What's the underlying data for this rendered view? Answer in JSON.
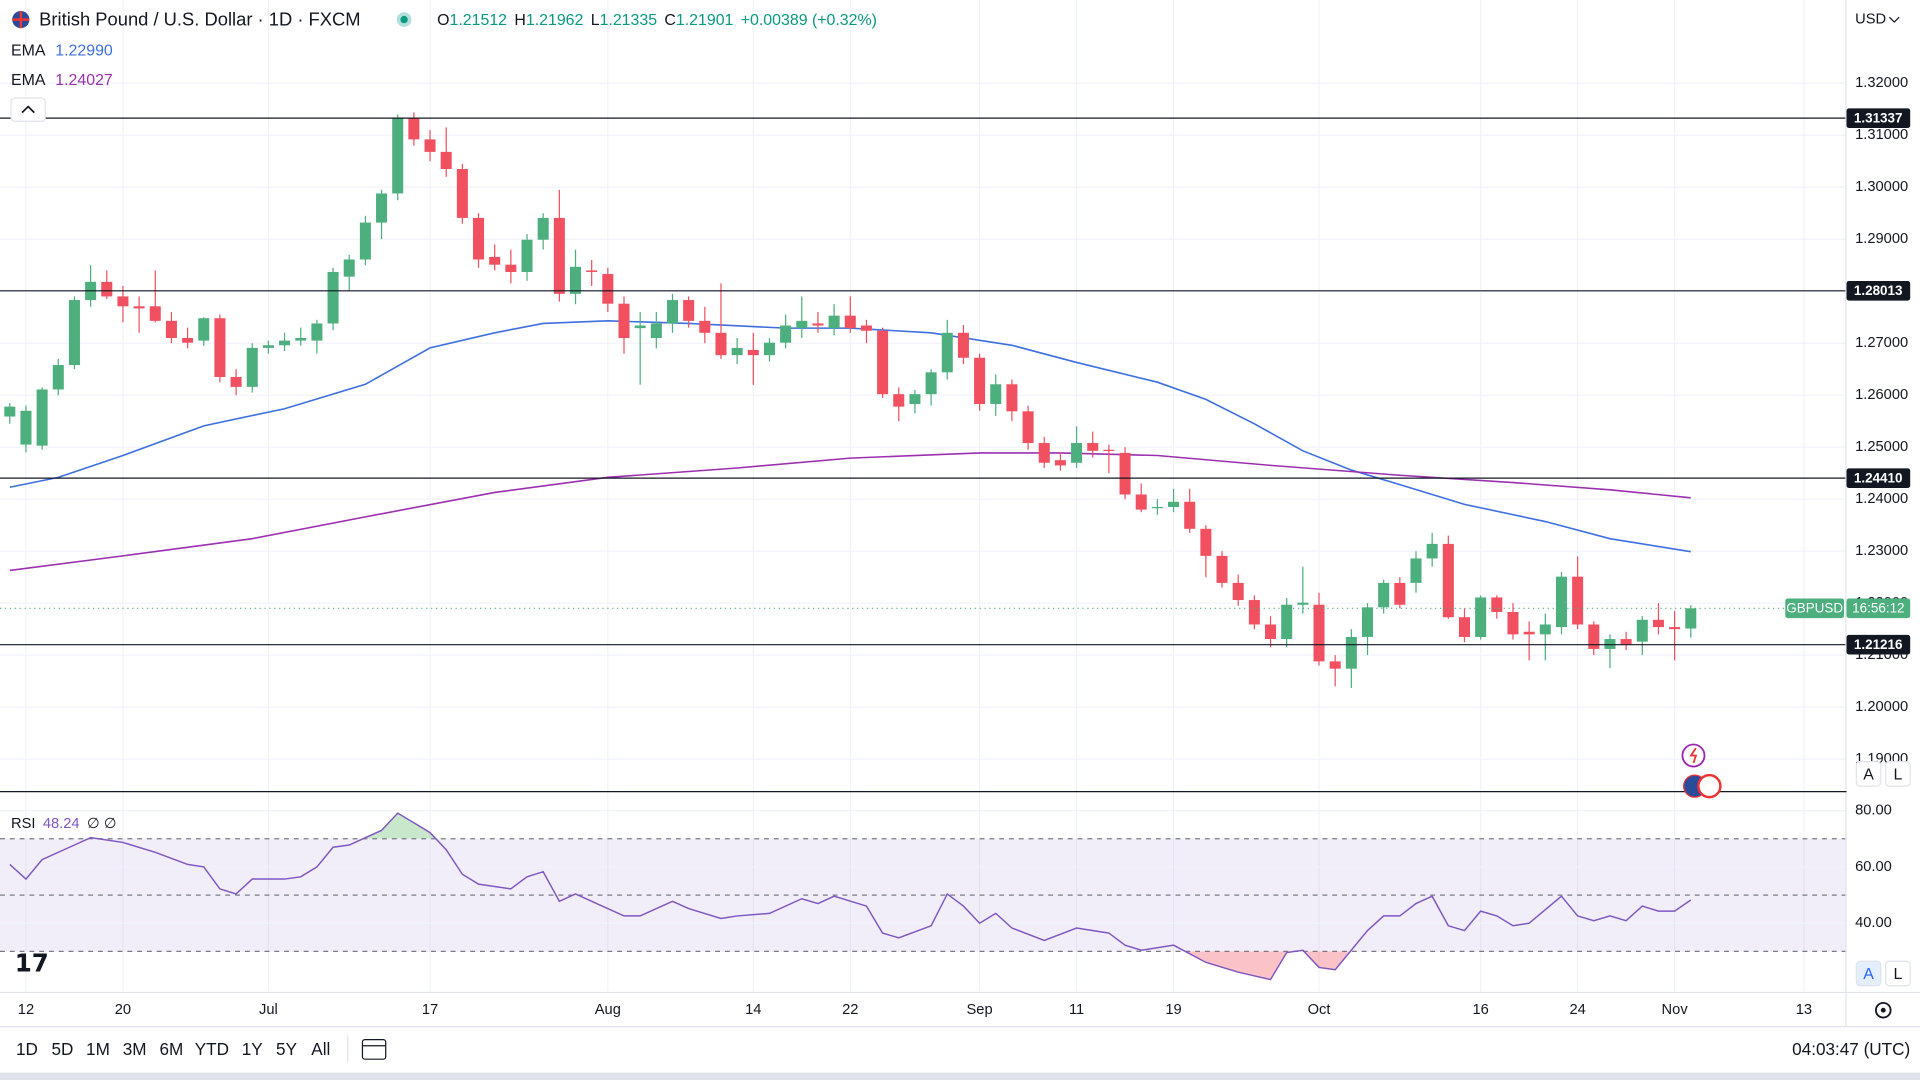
{
  "chart_data": {
    "type": "candlestick",
    "title": "British Pound / U.S. Dollar · 1D · FXCM",
    "currency": "USD",
    "ohlc_labels": [
      "O",
      "H",
      "L",
      "C"
    ],
    "change": "+0.00389 (+0.32%)",
    "symbol": "GBPUSD",
    "countdown": "16:56:12",
    "clock": "04:03:47 (UTC)",
    "ranges": [
      "1D",
      "5D",
      "1M",
      "3M",
      "6M",
      "YTD",
      "1Y",
      "5Y",
      "All"
    ],
    "scale_buttons": [
      "A",
      "L"
    ],
    "up_color": "#4caf7d",
    "down_color": "#f0505f",
    "grid": true,
    "categories": [
      null,
      "12",
      null,
      null,
      null,
      null,
      null,
      "20",
      null,
      null,
      null,
      null,
      null,
      null,
      null,
      null,
      "Jul",
      null,
      null,
      null,
      null,
      null,
      null,
      null,
      null,
      null,
      "17",
      null,
      null,
      null,
      null,
      null,
      null,
      null,
      null,
      null,
      null,
      "Aug",
      null,
      null,
      null,
      null,
      null,
      null,
      null,
      null,
      "14",
      null,
      null,
      null,
      null,
      null,
      "22",
      null,
      null,
      null,
      null,
      null,
      null,
      null,
      "Sep",
      null,
      null,
      null,
      null,
      null,
      "11",
      null,
      null,
      null,
      null,
      null,
      "19",
      null,
      null,
      null,
      null,
      null,
      null,
      null,
      null,
      "Oct",
      null,
      null,
      null,
      null,
      null,
      null,
      null,
      null,
      null,
      "16",
      null,
      null,
      null,
      null,
      null,
      "24",
      null,
      null,
      null,
      null,
      null,
      "Nov",
      null,
      null,
      null,
      null,
      null,
      null,
      null,
      "13"
    ],
    "ohlc": [
      [
        1.2559,
        1.2585,
        1.2545,
        1.2578
      ],
      [
        1.2505,
        1.258,
        1.249,
        1.257
      ],
      [
        1.2503,
        1.2615,
        1.2495,
        1.2611
      ],
      [
        1.2611,
        1.267,
        1.26,
        1.2658
      ],
      [
        1.2658,
        1.279,
        1.265,
        1.2783
      ],
      [
        1.2783,
        1.285,
        1.277,
        1.2818
      ],
      [
        1.2818,
        1.284,
        1.2785,
        1.279
      ],
      [
        1.279,
        1.281,
        1.274,
        1.2771
      ],
      [
        1.2771,
        1.279,
        1.272,
        1.2767
      ],
      [
        1.2771,
        1.284,
        1.274,
        1.2743
      ],
      [
        1.2743,
        1.276,
        1.27,
        1.271
      ],
      [
        1.271,
        1.273,
        1.269,
        1.2701
      ],
      [
        1.2705,
        1.275,
        1.2695,
        1.2748
      ],
      [
        1.2748,
        1.2755,
        1.2625,
        1.2635
      ],
      [
        1.2635,
        1.265,
        1.26,
        1.2616
      ],
      [
        1.2616,
        1.27,
        1.2605,
        1.2691
      ],
      [
        1.2691,
        1.2705,
        1.268,
        1.2696
      ],
      [
        1.2696,
        1.272,
        1.2685,
        1.2705
      ],
      [
        1.2705,
        1.273,
        1.2695,
        1.271
      ],
      [
        1.2705,
        1.2745,
        1.268,
        1.2738
      ],
      [
        1.2738,
        1.2845,
        1.2725,
        1.2837
      ],
      [
        1.2828,
        1.287,
        1.28,
        1.2861
      ],
      [
        1.2861,
        1.2945,
        1.285,
        1.2932
      ],
      [
        1.2932,
        1.2995,
        1.29,
        1.2988
      ],
      [
        1.2988,
        1.314,
        1.2975,
        1.3134
      ],
      [
        1.3134,
        1.3144,
        1.308,
        1.3092
      ],
      [
        1.3092,
        1.311,
        1.305,
        1.3068
      ],
      [
        1.3068,
        1.3115,
        1.302,
        1.3035
      ],
      [
        1.3035,
        1.3045,
        1.293,
        1.2941
      ],
      [
        1.2941,
        1.295,
        1.2845,
        1.2861
      ],
      [
        1.2866,
        1.289,
        1.284,
        1.2851
      ],
      [
        1.2851,
        1.288,
        1.2815,
        1.2837
      ],
      [
        1.2837,
        1.291,
        1.282,
        1.2899
      ],
      [
        1.2899,
        1.295,
        1.288,
        1.2941
      ],
      [
        1.2941,
        1.2995,
        1.278,
        1.2795
      ],
      [
        1.2795,
        1.288,
        1.2775,
        1.2847
      ],
      [
        1.284,
        1.286,
        1.281,
        1.2837
      ],
      [
        1.2833,
        1.2845,
        1.276,
        1.2776
      ],
      [
        1.2776,
        1.279,
        1.268,
        1.271
      ],
      [
        1.2729,
        1.276,
        1.262,
        1.2734
      ],
      [
        1.271,
        1.276,
        1.269,
        1.2738
      ],
      [
        1.2738,
        1.2795,
        1.272,
        1.2783
      ],
      [
        1.2783,
        1.279,
        1.273,
        1.2743
      ],
      [
        1.2743,
        1.277,
        1.27,
        1.272
      ],
      [
        1.272,
        1.2815,
        1.267,
        1.2677
      ],
      [
        1.2677,
        1.271,
        1.266,
        1.2691
      ],
      [
        1.2687,
        1.272,
        1.262,
        1.2677
      ],
      [
        1.2677,
        1.271,
        1.2665,
        1.2701
      ],
      [
        1.2701,
        1.2755,
        1.269,
        1.2734
      ],
      [
        1.2729,
        1.279,
        1.271,
        1.2743
      ],
      [
        1.2738,
        1.276,
        1.272,
        1.2734
      ],
      [
        1.2729,
        1.2775,
        1.2715,
        1.2753
      ],
      [
        1.2753,
        1.279,
        1.272,
        1.2729
      ],
      [
        1.2734,
        1.2745,
        1.27,
        1.2724
      ],
      [
        1.2724,
        1.273,
        1.2595,
        1.2602
      ],
      [
        1.2602,
        1.2615,
        1.255,
        1.2578
      ],
      [
        1.2583,
        1.261,
        1.2565,
        1.2602
      ],
      [
        1.2602,
        1.265,
        1.258,
        1.2644
      ],
      [
        1.2644,
        1.2745,
        1.263,
        1.272
      ],
      [
        1.272,
        1.2735,
        1.266,
        1.2672
      ],
      [
        1.2672,
        1.268,
        1.257,
        1.2583
      ],
      [
        1.2583,
        1.264,
        1.256,
        1.2621
      ],
      [
        1.2621,
        1.263,
        1.255,
        1.2569
      ],
      [
        1.2569,
        1.258,
        1.2495,
        1.2508
      ],
      [
        1.2508,
        1.252,
        1.246,
        1.247
      ],
      [
        1.2475,
        1.249,
        1.2455,
        1.2465
      ],
      [
        1.247,
        1.254,
        1.246,
        1.2508
      ],
      [
        1.2508,
        1.253,
        1.248,
        1.2493
      ],
      [
        1.2495,
        1.2505,
        1.245,
        1.2493
      ],
      [
        1.2489,
        1.25,
        1.24,
        1.2409
      ],
      [
        1.2409,
        1.243,
        1.2375,
        1.238
      ],
      [
        1.2385,
        1.24,
        1.237,
        1.2385
      ],
      [
        1.2385,
        1.242,
        1.2375,
        1.2395
      ],
      [
        1.2395,
        1.242,
        1.2335,
        1.2343
      ],
      [
        1.2343,
        1.235,
        1.225,
        1.2291
      ],
      [
        1.2291,
        1.23,
        1.223,
        1.2239
      ],
      [
        1.2239,
        1.2255,
        1.2195,
        1.2206
      ],
      [
        1.2206,
        1.2215,
        1.215,
        1.2159
      ],
      [
        1.2159,
        1.2175,
        1.2115,
        1.2131
      ],
      [
        1.2131,
        1.221,
        1.2115,
        1.2197
      ],
      [
        1.2197,
        1.227,
        1.218,
        1.2201
      ],
      [
        1.2197,
        1.222,
        1.208,
        1.2088
      ],
      [
        1.2088,
        1.21,
        1.204,
        1.2074
      ],
      [
        1.2074,
        1.215,
        1.2037,
        1.2135
      ],
      [
        1.2135,
        1.22,
        1.21,
        1.2192
      ],
      [
        1.2192,
        1.2245,
        1.218,
        1.2239
      ],
      [
        1.2239,
        1.225,
        1.219,
        1.2197
      ],
      [
        1.2239,
        1.23,
        1.222,
        1.2286
      ],
      [
        1.2286,
        1.2335,
        1.227,
        1.2314
      ],
      [
        1.2314,
        1.233,
        1.217,
        1.2173
      ],
      [
        1.2173,
        1.219,
        1.2125,
        1.2135
      ],
      [
        1.2135,
        1.2215,
        1.213,
        1.2211
      ],
      [
        1.2211,
        1.2215,
        1.217,
        1.2183
      ],
      [
        1.2183,
        1.22,
        1.213,
        1.214
      ],
      [
        1.2145,
        1.2165,
        1.209,
        1.214
      ],
      [
        1.214,
        1.218,
        1.209,
        1.2159
      ],
      [
        1.2154,
        1.226,
        1.214,
        1.2251
      ],
      [
        1.2251,
        1.229,
        1.215,
        1.2159
      ],
      [
        1.2159,
        1.2165,
        1.21,
        1.2112
      ],
      [
        1.2112,
        1.214,
        1.2075,
        1.2131
      ],
      [
        1.2131,
        1.2145,
        1.211,
        1.2121
      ],
      [
        1.2126,
        1.2175,
        1.21,
        1.2168
      ],
      [
        1.2168,
        1.22,
        1.214,
        1.2154
      ],
      [
        1.2154,
        1.2185,
        1.209,
        1.215
      ],
      [
        1.21512,
        1.21962,
        1.21335,
        1.21901
      ],
      null,
      null,
      null,
      null,
      null,
      null,
      null
    ],
    "series": [
      {
        "name": "EMA",
        "color": "#3d6fe0",
        "last_label": "1.22990",
        "x": [
          0,
          3,
          7,
          12,
          17,
          22,
          26,
          30,
          33,
          37,
          42,
          48,
          52,
          57,
          62,
          66,
          71,
          74,
          77,
          80,
          83,
          86,
          90,
          95,
          99,
          104
        ],
        "values": [
          1.2423,
          1.2442,
          1.2484,
          1.2541,
          1.2574,
          1.2621,
          1.2691,
          1.272,
          1.2738,
          1.2743,
          1.2738,
          1.2729,
          1.2729,
          1.272,
          1.2696,
          1.2663,
          1.2625,
          1.2592,
          1.2545,
          1.2493,
          1.2456,
          1.2428,
          1.239,
          1.2357,
          1.2324,
          1.2299
        ]
      },
      {
        "name": "EMA",
        "color": "#9c2fb0",
        "last_label": "1.24027",
        "x": [
          0,
          7,
          15,
          22,
          30,
          37,
          45,
          52,
          60,
          65,
          71,
          78,
          86,
          93,
          99,
          104
        ],
        "values": [
          1.2263,
          1.2291,
          1.2324,
          1.2366,
          1.2413,
          1.2442,
          1.246,
          1.2479,
          1.2489,
          1.2489,
          1.2484,
          1.2465,
          1.2446,
          1.2432,
          1.2418,
          1.24027
        ]
      }
    ],
    "ylim": [
      1.18387,
      1.33601
    ],
    "yticks": [
      {
        "value": 1.19,
        "label": "1.19000"
      },
      {
        "value": 1.2,
        "label": "1.20000"
      },
      {
        "value": 1.21,
        "label": "1.21000"
      },
      {
        "value": 1.22,
        "label": "1.22000"
      },
      {
        "value": 1.23,
        "label": "1.23000"
      },
      {
        "value": 1.24,
        "label": "1.24000"
      },
      {
        "value": 1.25,
        "label": "1.25000"
      },
      {
        "value": 1.26,
        "label": "1.26000"
      },
      {
        "value": 1.27,
        "label": "1.27000"
      },
      {
        "value": 1.28,
        "label": "1.28000"
      },
      {
        "value": 1.29,
        "label": "1.29000"
      },
      {
        "value": 1.3,
        "label": "1.30000"
      },
      {
        "value": 1.31,
        "label": "1.31000"
      },
      {
        "value": 1.32,
        "label": "1.32000"
      }
    ],
    "levels": [
      1.31337,
      1.28013,
      {
        "value": 1.2441,
        "label": "1.24410"
      },
      1.21216
    ],
    "rsi": {
      "name": "RSI",
      "value_label": "48.24",
      "extra": "∅ ∅",
      "color": "#7e57c2",
      "x": [
        0,
        1,
        2,
        4,
        5,
        7,
        9,
        11,
        12,
        13,
        14,
        15,
        17,
        18,
        19,
        20,
        21,
        23,
        24,
        25,
        26,
        27,
        28,
        29,
        31,
        32,
        33,
        34,
        35,
        36,
        38,
        39,
        41,
        42,
        44,
        45,
        47,
        49,
        50,
        51,
        53,
        54,
        55,
        57,
        58,
        59,
        60,
        61,
        62,
        64,
        66,
        68,
        69,
        70,
        72,
        74,
        76,
        78,
        79,
        80,
        81,
        82,
        84,
        85,
        86,
        87,
        88,
        89,
        90,
        91,
        92,
        93,
        94,
        96,
        97,
        98,
        99,
        100,
        101,
        102,
        103,
        104
      ],
      "values": [
        60.9,
        55.7,
        62.6,
        67.8,
        70.4,
        68.7,
        65.2,
        60.9,
        60.0,
        52.2,
        50.4,
        55.7,
        55.7,
        56.5,
        60.0,
        67.0,
        67.8,
        73.0,
        79.1,
        75.7,
        72.2,
        66.1,
        57.4,
        53.9,
        52.2,
        56.5,
        58.3,
        47.8,
        50.4,
        47.8,
        42.6,
        42.6,
        47.8,
        45.2,
        41.7,
        42.6,
        43.5,
        48.7,
        47.0,
        49.6,
        46.1,
        36.5,
        34.8,
        39.1,
        50.4,
        46.1,
        40.0,
        43.5,
        38.3,
        33.9,
        38.3,
        36.5,
        32.2,
        30.4,
        32.2,
        26.1,
        22.6,
        20.0,
        29.6,
        30.4,
        24.3,
        23.5,
        37.4,
        42.6,
        42.6,
        47.0,
        49.6,
        39.1,
        37.4,
        44.3,
        42.6,
        39.1,
        40.0,
        49.6,
        42.6,
        40.9,
        42.6,
        40.9,
        46.1,
        44.3,
        44.3,
        48.24
      ],
      "ylim": [
        16.5,
        86.1
      ],
      "yticks": [
        {
          "value": 40,
          "label": "40.00"
        },
        {
          "value": 60,
          "label": "60.00"
        },
        {
          "value": 80,
          "label": "80.00"
        }
      ],
      "bands": [
        70,
        50,
        30
      ]
    }
  }
}
